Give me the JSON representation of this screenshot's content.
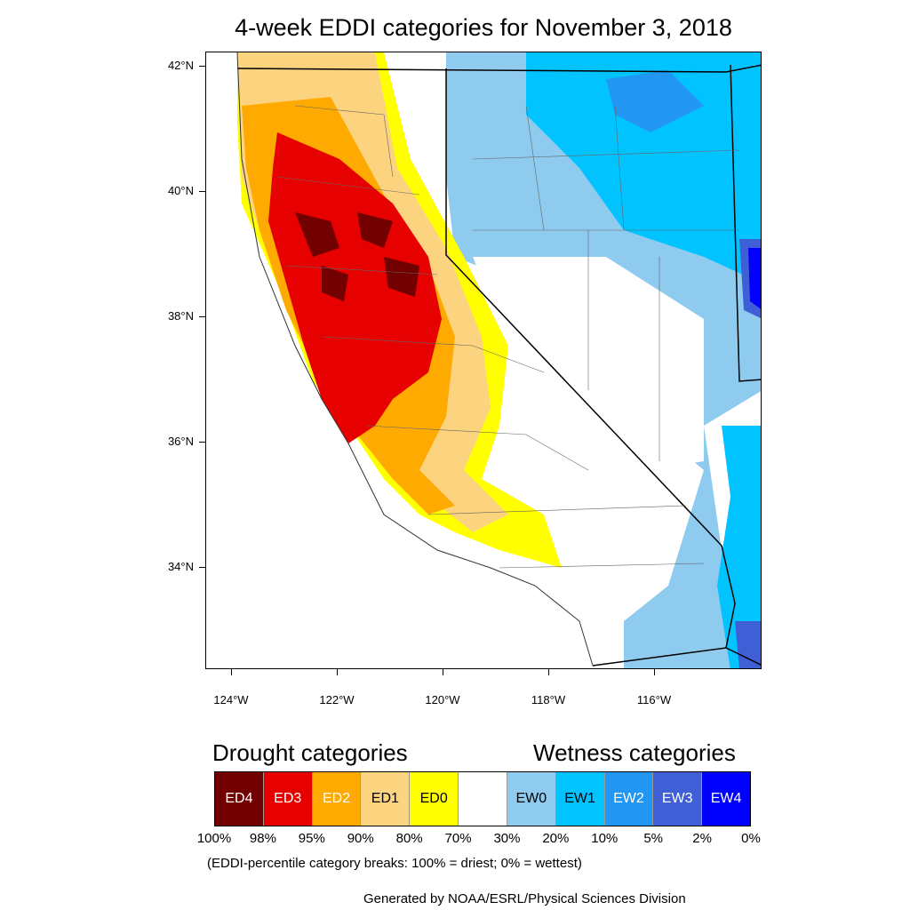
{
  "title": "4-week EDDI categories for November 3, 2018",
  "axes": {
    "lat_labels": [
      "42°N",
      "40°N",
      "38°N",
      "36°N",
      "34°N"
    ],
    "lon_labels": [
      "124°W",
      "122°W",
      "120°W",
      "118°W",
      "116°W"
    ]
  },
  "legend": {
    "drought_heading": "Drought categories",
    "wetness_heading": "Wetness categories",
    "categories": [
      {
        "label": "ED4",
        "color": "#730000",
        "text_color": "#ffffff"
      },
      {
        "label": "ED3",
        "color": "#e60000",
        "text_color": "#ffffff"
      },
      {
        "label": "ED2",
        "color": "#ffaa00",
        "text_color": "#ffffff"
      },
      {
        "label": "ED1",
        "color": "#fcd37f",
        "text_color": "#000000"
      },
      {
        "label": "ED0",
        "color": "#ffff00",
        "text_color": "#000000"
      },
      {
        "label": "",
        "color": "#ffffff",
        "text_color": "#000000"
      },
      {
        "label": "EW0",
        "color": "#8ecbef",
        "text_color": "#000000"
      },
      {
        "label": "EW1",
        "color": "#00c3ff",
        "text_color": "#000000"
      },
      {
        "label": "EW2",
        "color": "#2196f3",
        "text_color": "#ffffff"
      },
      {
        "label": "EW3",
        "color": "#3f5fd6",
        "text_color": "#ffffff"
      },
      {
        "label": "EW4",
        "color": "#0000ff",
        "text_color": "#ffffff"
      }
    ],
    "percent_breaks": [
      "100%",
      "98%",
      "95%",
      "90%",
      "80%",
      "70%",
      "30%",
      "20%",
      "10%",
      "5%",
      "2%",
      "0%"
    ]
  },
  "note": "(EDDI-percentile category breaks: 100% = driest; 0% = wettest)",
  "credit": "Generated by NOAA/ESRL/Physical Sciences Division"
}
